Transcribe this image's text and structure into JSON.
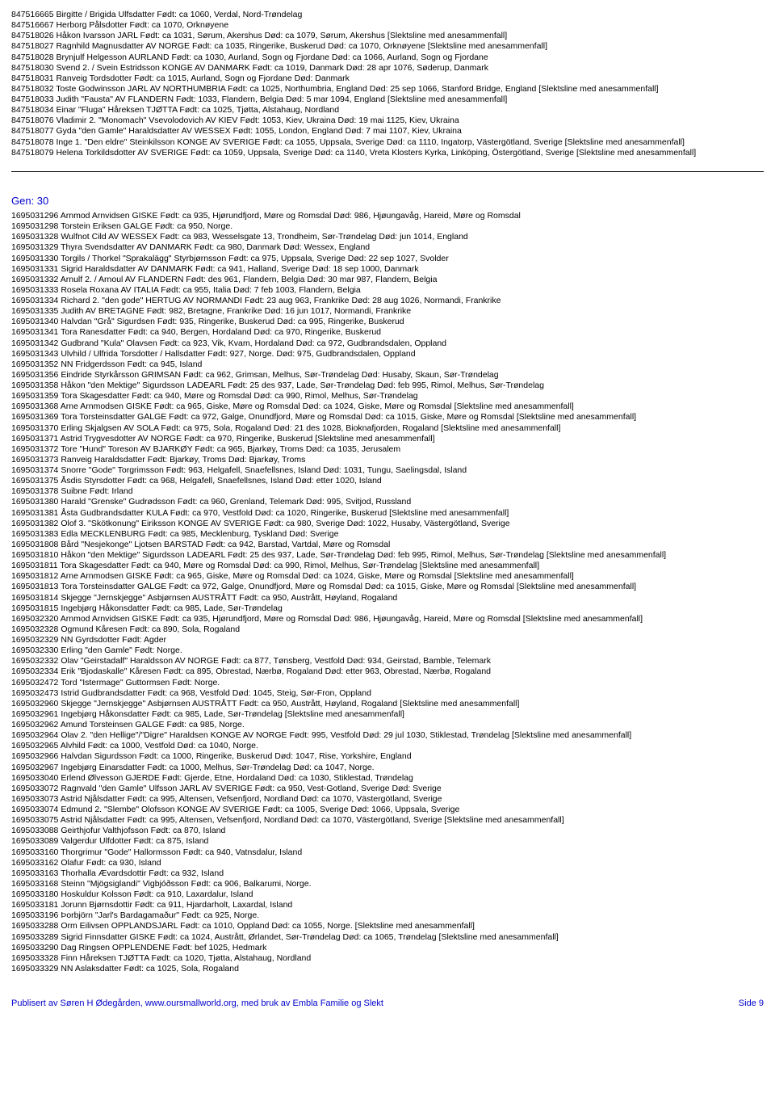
{
  "block1": [
    "847516665  Birgitte / Brigida Ulfsdatter    Født: ca 1060, Verdal, Nord-Trøndelag",
    "847516667  Herborg Pålsdotter    Født: ca 1070, Orknøyene",
    "847518026  Håkon Ivarsson JARL    Født: ca 1031, Sørum, Akershus   Død: ca 1079, Sørum, Akershus     [Slektsline med anesammenfall]",
    "847518027  Ragnhild Magnusdatter AV NORGE    Født: ca 1035, Ringerike, Buskerud   Død: ca 1070, Orknøyene     [Slektsline med anesammenfall]",
    "847518028  Brynjulf Helgesson AURLAND    Født: ca 1030, Aurland, Sogn og Fjordane   Død: ca 1066, Aurland, Sogn og Fjordane",
    "847518030  Svend 2. / Svein Estridsson KONGE AV DANMARK    Født: ca 1019, Danmark   Død: 28 apr 1076, Søderup, Danmark",
    "847518031  Ranveig Tordsdotter    Født: ca 1015, Aurland, Sogn og Fjordane   Død: Danmark",
    "847518032  Toste Godwinsson JARL AV NORTHUMBRIA    Født: ca 1025, Northumbria, England   Død: 25 sep 1066, Stanford Bridge, England     [Slektsline med anesammenfall]",
    "847518033  Judith \"Fausta\" AV FLANDERN    Født: 1033, Flandern, Belgia   Død: 5 mar 1094, England     [Slektsline med anesammenfall]",
    "847518034  Einar \"Fluga\" Håreksen TJØTTA    Født: ca 1025, Tjøtta, Alstahaug, Nordland",
    "847518076  Vladimir 2. \"Monomach\" Vsevolodovich AV KIEV    Født: 1053, Kiev, Ukraina   Død: 19 mai 1125, Kiev, Ukraina",
    "847518077  Gyda \"den Gamle\" Haraldsdatter AV WESSEX    Født: 1055, London, England   Død: 7 mai 1107, Kiev, Ukraina",
    "847518078  Inge 1. \"Den eldre\" Steinkilsson KONGE AV SVERIGE    Født: ca 1055, Uppsala, Sverige   Død: ca 1110, Ingatorp, Västergötland, Sverige     [Slektsline med anesammenfall]",
    "847518079  Helena Torkildsdotter AV SVERIGE    Født: ca 1059, Uppsala, Sverige   Død: ca 1140, Vreta Klosters Kyrka, Linköping, Östergötland, Sverige     [Slektsline med anesammenfall]"
  ],
  "gen_label": "Gen:  30",
  "block2": [
    "1695031296  Arnmod Arnvidsen GISKE    Født: ca 935, Hjørundfjord, Møre og Romsdal   Død: 986, Hjøungavåg, Hareid, Møre og Romsdal",
    "1695031298  Torstein Eriksen GALGE    Født: ca 950, Norge.",
    "1695031328  Wulfnot Cild AV WESSEX    Født: ca 983, Wesselsgate 13, Trondheim, Sør-Trøndelag   Død: jun 1014, England",
    "1695031329  Thyra Svendsdatter AV DANMARK    Født: ca 980, Danmark   Død: Wessex, England",
    "1695031330  Torgils / Thorkel \"Sprakalägg\" Styrbjørnsson    Født: ca 975, Uppsala, Sverige   Død: 22 sep 1027, Svolder",
    "1695031331  Sigrid Haraldsdatter AV DANMARK    Født: ca 941, Halland, Sverige   Død: 18 sep 1000, Danmark",
    "1695031332  Arnulf 2. / Arnoul AV FLANDERN    Født: des 961, Flandern, Belgia   Død: 30 mar 987, Flandern, Belgia",
    "1695031333  Rosela Roxana AV ITALIA    Født: ca 955, Italia   Død: 7 feb 1003, Flandern, Belgia",
    "1695031334  Richard 2. \"den gode\" HERTUG AV NORMANDI    Født: 23 aug 963, Frankrike   Død: 28 aug 1026, Normandi, Frankrike",
    "1695031335  Judith AV BRETAGNE    Født: 982, Bretagne, Frankrike   Død: 16 jun 1017, Normandi, Frankrike",
    "1695031340  Halvdan \"Grå\" Sigurdsen    Født: 935, Ringerike, Buskerud   Død: ca 995, Ringerike, Buskerud",
    "1695031341  Tora Ranesdatter    Født: ca 940, Bergen, Hordaland   Død: ca 970, Ringerike, Buskerud",
    "1695031342  Gudbrand \"Kula\" Olavsen    Født: ca 923, Vik, Kvam, Hordaland   Død: ca 972, Gudbrandsdalen, Oppland",
    "1695031343  Ulvhild / Ulfrida Torsdotter / Hallsdatter    Født: 927, Norge.   Død: 975, Gudbrandsdalen, Oppland",
    "1695031352  NN Fridgerdsson    Født: ca 945, Island",
    "1695031356  Eindride Styrkårsson GRIMSAN    Født: ca 962, Grimsan, Melhus, Sør-Trøndelag   Død: Husaby, Skaun, Sør-Trøndelag",
    "1695031358  Håkon \"den Mektige\" Sigurdsson LADEARL    Født: 25 des 937, Lade, Sør-Trøndelag   Død: feb 995, Rimol, Melhus, Sør-Trøndelag",
    "1695031359  Tora Skagesdatter    Født: ca 940, Møre og Romsdal   Død: ca 990, Rimol, Melhus, Sør-Trøndelag",
    "1695031368  Arne Arnmodsen GISKE    Født: ca 965, Giske, Møre og Romsdal   Død: ca 1024, Giske, Møre og Romsdal     [Slektsline med anesammenfall]",
    "1695031369  Tora Torsteinsdatter GALGE    Født: ca 972, Galge, Onundfjord, Møre og Romsdal   Død: ca 1015, Giske, Møre og Romsdal     [Slektsline med anesammenfall]",
    "1695031370  Erling Skjalgsen AV SOLA    Født: ca 975, Sola, Rogaland   Død: 21 des 1028, Bioknafjorden, Rogaland     [Slektsline med anesammenfall]",
    "1695031371  Astrid Trygvesdotter AV NORGE    Født: ca 970, Ringerike, Buskerud     [Slektsline med anesammenfall]",
    "1695031372  Tore \"Hund\" Toreson AV BJARKØY    Født: ca 965, Bjarkøy, Troms   Død: ca 1035, Jerusalem",
    "1695031373  Ranveig Haraldsdatter    Født: Bjarkøy, Troms   Død: Bjarkøy, Troms",
    "1695031374  Snorre \"Gode\" Torgrimsson    Født: 963, Helgafell, Snaefellsnes, Island   Død: 1031, Tungu, Saelingsdal, Island",
    "1695031375  Åsdis Styrsdotter    Født: ca 968, Helgafell, Snaefellsnes, Island   Død: etter 1020, Island",
    "1695031378  Suibne    Født: Irland",
    "1695031380  Harald \"Grenske\" Gudrødsson    Født: ca 960, Grenland, Telemark   Død: 995, Svitjod, Russland",
    "1695031381  Åsta Gudbrandsdatter KULA    Født: ca 970, Vestfold   Død: ca 1020, Ringerike, Buskerud     [Slektsline med anesammenfall]",
    "1695031382  Olof 3. \"Skötkonung\" Eiriksson KONGE AV SVERIGE    Født: ca 980, Sverige   Død: 1022, Husaby, Västergötland, Sverige",
    "1695031383  Edla MECKLENBURG    Født: ca 985, Mecklenburg, Tyskland   Død: Sverige",
    "1695031808  Bård \"Nesjekonge\" Ljotsen BARSTAD    Født: ca 942, Barstad, Vartdal, Møre og Romsdal",
    "1695031810  Håkon \"den Mektige\" Sigurdsson LADEARL    Født: 25 des 937, Lade, Sør-Trøndelag   Død: feb 995, Rimol, Melhus, Sør-Trøndelag     [Slektsline med anesammenfall]",
    "1695031811  Tora Skagesdatter    Født: ca 940, Møre og Romsdal   Død: ca 990, Rimol, Melhus, Sør-Trøndelag     [Slektsline med anesammenfall]",
    "1695031812  Arne Arnmodsen GISKE    Født: ca 965, Giske, Møre og Romsdal   Død: ca 1024, Giske, Møre og Romsdal     [Slektsline med anesammenfall]",
    "1695031813  Tora Torsteinsdatter GALGE    Født: ca 972, Galge, Onundfjord, Møre og Romsdal   Død: ca 1015, Giske, Møre og Romsdal     [Slektsline med anesammenfall]",
    "1695031814  Skjegge \"Jernskjegge\" Asbjørnsen AUSTRÅTT    Født: ca 950, Austrått, Høyland, Rogaland",
    "1695031815  Ingebjørg Håkonsdatter    Født: ca 985, Lade, Sør-Trøndelag",
    "1695032320  Arnmod Arnvidsen GISKE    Født: ca 935, Hjørundfjord, Møre og Romsdal   Død: 986, Hjøungavåg, Hareid, Møre og Romsdal     [Slektsline med anesammenfall]",
    "1695032328  Ogmund Kåresen    Født: ca 890, Sola, Rogaland",
    "1695032329  NN Gyrdsdotter    Født: Agder",
    "1695032330  Erling \"den Gamle\"    Født: Norge.",
    "1695032332  Olav \"Geirstadalf\" Haraldsson AV NORGE    Født: ca 877, Tønsberg, Vestfold   Død: 934, Geirstad, Bamble, Telemark",
    "1695032334  Erik \"Bjodaskalle\" Kåresen    Født: ca 895, Obrestad, Nærbø, Rogaland   Død: etter 963, Obrestad, Nærbø, Rogaland",
    "1695032472  Tord \"Istermage\" Guttormsen    Født: Norge.",
    "1695032473  Istrid Gudbrandsdatter    Født: ca 968, Vestfold   Død: 1045, Steig, Sør-Fron, Oppland",
    "1695032960  Skjegge \"Jernskjegge\" Asbjørnsen AUSTRÅTT    Født: ca 950, Austrått, Høyland, Rogaland     [Slektsline med anesammenfall]",
    "1695032961  Ingebjørg Håkonsdatter    Født: ca 985, Lade, Sør-Trøndelag     [Slektsline med anesammenfall]",
    "1695032962  Amund Torsteinsen GALGE    Født: ca 985, Norge.",
    "1695032964  Olav 2. \"den Hellige\"/\"Digre\" Haraldsen KONGE AV NORGE    Født: 995, Vestfold   Død: 29 jul 1030, Stiklestad, Trøndelag     [Slektsline med anesammenfall]",
    "1695032965  Alvhild    Født: ca 1000, Vestfold   Død: ca 1040, Norge.",
    "1695032966  Halvdan Sigurdsson    Født: ca 1000, Ringerike, Buskerud   Død: 1047, Rise, Yorkshire, England",
    "1695032967  Ingebjørg Einarsdatter    Født: ca 1000, Melhus, Sør-Trøndelag   Død: ca 1047, Norge.",
    "1695033040  Erlend Ølvesson GJERDE    Født: Gjerde, Etne, Hordaland   Død: ca 1030, Stiklestad, Trøndelag",
    "1695033072  Ragnvald \"den Gamle\" Ulfsson JARL AV SVERIGE    Født: ca 950, Vest-Gotland, Sverige   Død: Sverige",
    "1695033073  Astrid Njålsdatter    Født: ca 995, Altensen, Vefsenfjord, Nordland   Død: ca 1070, Västergötland, Sverige",
    "1695033074  Edmund 2. \"Slembe\" Olofsson KONGE AV SVERIGE    Født: ca 1005, Sverige   Død: 1066, Uppsala, Sverige",
    "1695033075  Astrid Njålsdatter    Født: ca 995, Altensen, Vefsenfjord, Nordland   Død: ca 1070, Västergötland, Sverige     [Slektsline med anesammenfall]",
    "1695033088  Geirthjofur Valthjofsson    Født: ca 870, Island",
    "1695033089  Valgerdur Ulfdotter    Født: ca 875, Island",
    "1695033160  Thorgrimur \"Gode\" Hallormsson    Født: ca 940, Vatnsdalur, Island",
    "1695033162  Olafur    Født: ca 930, Island",
    "1695033163  Thorhalla Ævardsdottir    Født: ca 932, Island",
    "1695033168  Steinn \"Mjögsiglandi\" Vigbjóðsson    Født: ca 906, Balkarumi, Norge.",
    "1695033180  Hoskuldur Kolsson    Født: ca 910, Laxardalur, Island",
    "1695033181  Jorunn Bjørnsdottir    Født: ca 911, Hjardarholt, Laxardal, Island",
    "1695033196  Þorbjörn \"Jarl's Bardagamaður\"    Født: ca 925, Norge.",
    "1695033288  Orm Eilivsen OPPLANDSJARL    Født: ca 1010, Oppland   Død: ca 1055, Norge.     [Slektsline med anesammenfall]",
    "1695033289  Sigrid Finnsdatter GISKE    Født: ca 1024, Austrått, Ørlandet, Sør-Trøndelag   Død: ca 1065, Trøndelag     [Slektsline med anesammenfall]",
    "1695033290  Dag Ringsen OPPLENDENE    Født: bef 1025, Hedmark",
    "1695033328  Finn Håreksen TJØTTA    Født: ca 1020, Tjøtta, Alstahaug, Nordland",
    "1695033329  NN Aslaksdatter    Født: ca 1025, Sola, Rogaland"
  ],
  "footer": {
    "publisher": "Publisert av Søren H Ødegården, www.oursmallworld.org, med bruk av Embla Familie og Slekt",
    "page": "Side 9"
  }
}
